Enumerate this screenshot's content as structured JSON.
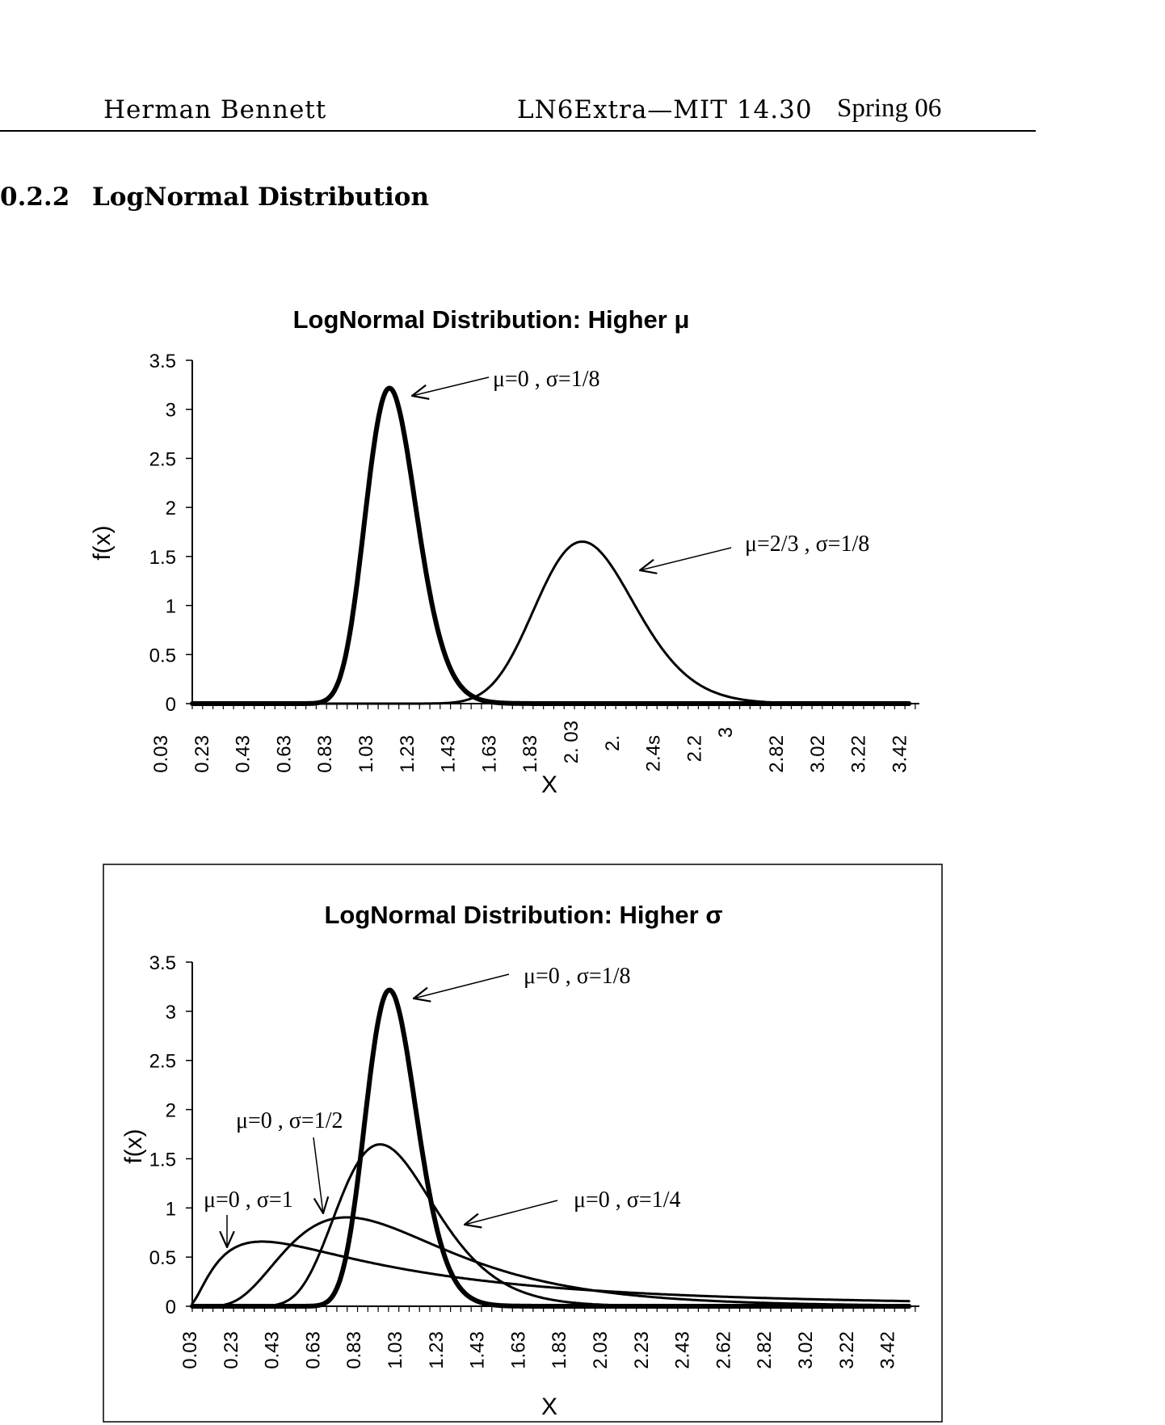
{
  "header": {
    "author": "Herman Bennett",
    "course": "LN6Extra—MIT 14.30",
    "term": "Spring 06"
  },
  "section": {
    "number": "0.2.2",
    "title": "LogNormal Distribution"
  },
  "chart_data": [
    {
      "type": "line",
      "title": "LogNormal Distribution: Higher μ",
      "xlabel": "X",
      "ylabel": "f(x)",
      "xlim": [
        0.03,
        3.55
      ],
      "ylim": [
        0,
        3.5
      ],
      "yticks": [
        "0",
        "0.5",
        "1",
        "1.5",
        "2",
        "2.5",
        "3",
        "3.5"
      ],
      "xtick_labels": [
        "0.03",
        "0.23",
        "0.43",
        "0.63",
        "0.83",
        "1.03",
        "1.23",
        "1.43",
        "1.63",
        "1.83",
        "2. 03",
        "2.",
        "2.4s",
        "2.2",
        "3",
        "2.82",
        "3.02",
        "3.22",
        "3.42"
      ],
      "grid": false,
      "border": false,
      "series": [
        {
          "mu": 0,
          "sigma": 0.125,
          "stroke_width": 6,
          "peak_x": 0.99,
          "peak_y": 3.2
        },
        {
          "mu": 0.6667,
          "sigma": 0.125,
          "stroke_width": 3,
          "peak_x": 1.92,
          "peak_y": 1.65
        }
      ],
      "annotations": [
        {
          "text": "μ=0 , σ=1/8",
          "series": 0
        },
        {
          "text": "μ=2/3 , σ=1/8",
          "series": 1
        }
      ]
    },
    {
      "type": "line",
      "title": "LogNormal Distribution: Higher σ",
      "xlabel": "X",
      "ylabel": "f(x)",
      "xlim": [
        0.03,
        3.55
      ],
      "ylim": [
        0,
        3.5
      ],
      "yticks": [
        "0",
        "0.5",
        "1",
        "1.5",
        "2",
        "2.5",
        "3",
        "3.5"
      ],
      "xtick_labels": [
        "0.03",
        "0.23",
        "0.43",
        "0.63",
        "0.83",
        "1.03",
        "1.23",
        "1.43",
        "1.63",
        "1.83",
        "2.03",
        "2.23",
        "2.43",
        "2.62",
        "2.82",
        "3.02",
        "3.22",
        "3.42"
      ],
      "grid": false,
      "border": true,
      "series": [
        {
          "mu": 0,
          "sigma": 0.125,
          "stroke_width": 6,
          "peak_x": 0.99,
          "peak_y": 3.2
        },
        {
          "mu": 0,
          "sigma": 0.25,
          "stroke_width": 3,
          "peak_x": 0.94,
          "peak_y": 1.65
        },
        {
          "mu": 0,
          "sigma": 0.5,
          "stroke_width": 3,
          "peak_x": 0.78,
          "peak_y": 0.9
        },
        {
          "mu": 0,
          "sigma": 1,
          "stroke_width": 3,
          "peak_x": 0.37,
          "peak_y": 0.65
        }
      ],
      "annotations": [
        {
          "text": "μ=0 , σ=1/8",
          "series": 0
        },
        {
          "text": "μ=0 , σ=1/4",
          "series": 1
        },
        {
          "text": "μ=0 , σ=1/2",
          "series": 2
        },
        {
          "text": "μ=0 , σ=1",
          "series": 3
        }
      ]
    }
  ]
}
